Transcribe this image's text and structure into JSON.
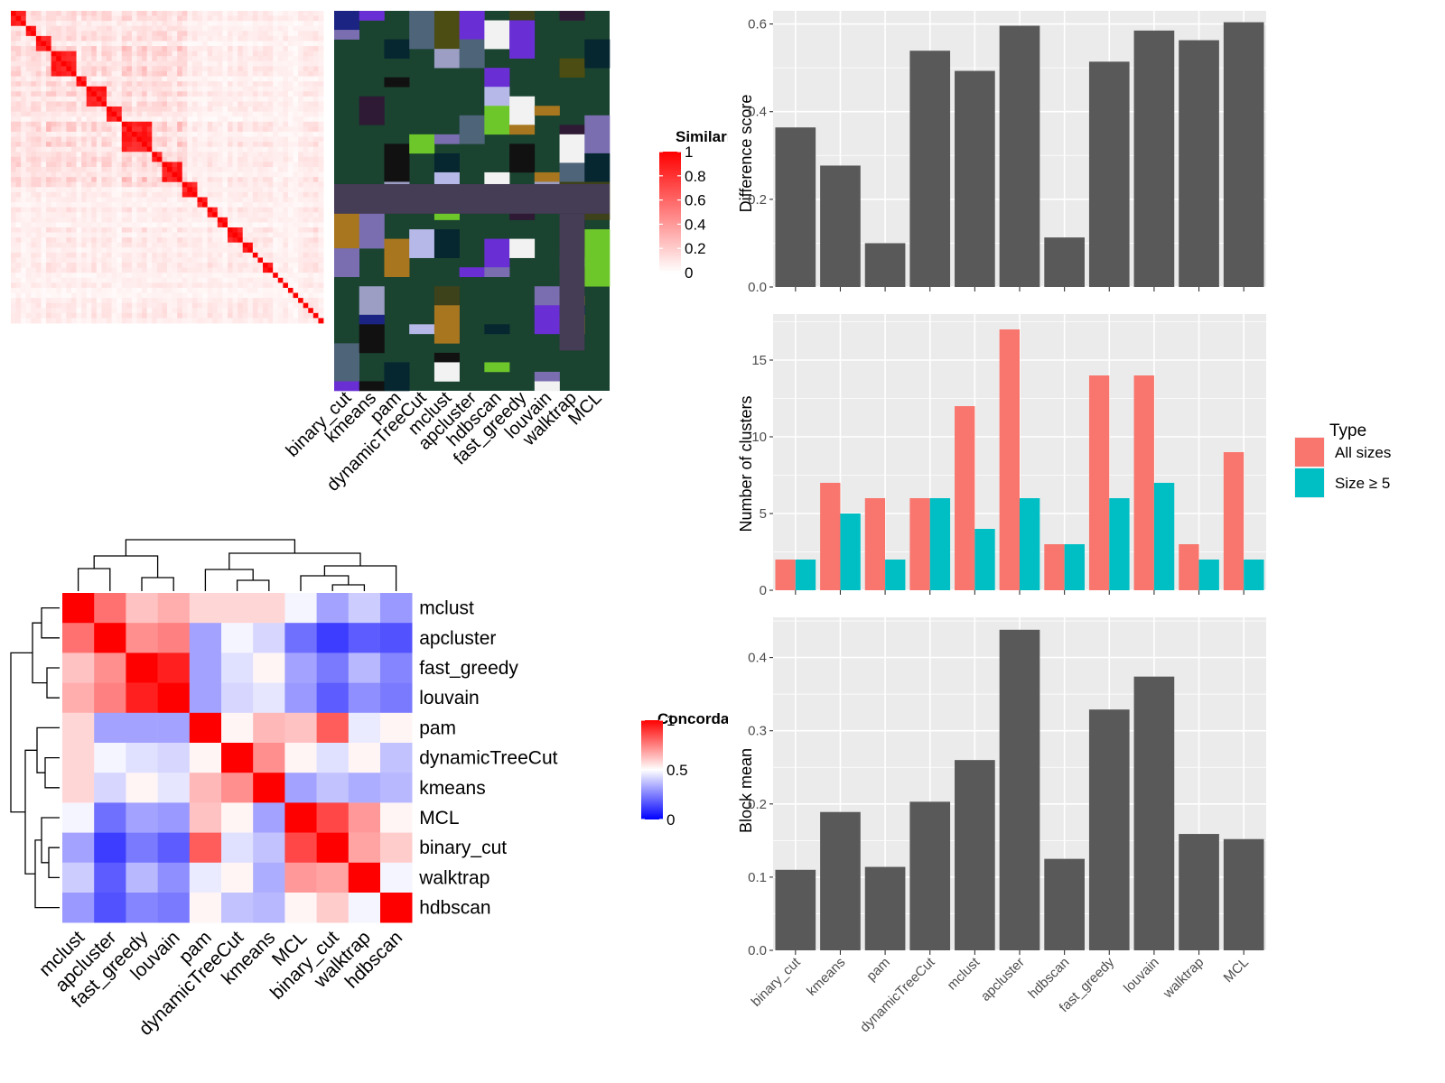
{
  "methods": [
    "binary_cut",
    "kmeans",
    "pam",
    "dynamicTreeCut",
    "mclust",
    "apcluster",
    "hdbscan",
    "fast_greedy",
    "louvain",
    "walktrap",
    "MCL"
  ],
  "top_left_panel": {
    "legend": {
      "title": "Similarity",
      "ticks": [
        0,
        0.2,
        0.4,
        0.6,
        0.8,
        1
      ]
    },
    "similarity_blocks": [
      3,
      2,
      3,
      5,
      2,
      4,
      3,
      6,
      2,
      4,
      3,
      2,
      2,
      2,
      3,
      2,
      1,
      1,
      2,
      1,
      1,
      1,
      1,
      1,
      1,
      1,
      1,
      1,
      1
    ],
    "palette": {
      "background": "#1a4330",
      "shared": "#453c55",
      "colors": [
        "#4e6479",
        "#b6b8e8",
        "#9c9ec4",
        "#1b2482",
        "#111111",
        "#2e1a35",
        "#a8761f",
        "#6ec72a",
        "#7a6eb0",
        "#6a2fd4",
        "#f2f2f2",
        "#3e421a",
        "#062630",
        "#4b4d12"
      ]
    }
  },
  "concordance_panel": {
    "legend": {
      "title": "Concordance",
      "ticks": [
        0,
        0.5,
        1
      ]
    },
    "row_order": [
      "mclust",
      "apcluster",
      "fast_greedy",
      "louvain",
      "pam",
      "dynamicTreeCut",
      "kmeans",
      "MCL",
      "binary_cut",
      "walktrap",
      "hdbscan"
    ],
    "matrix": [
      [
        1.0,
        0.78,
        0.62,
        0.66,
        0.58,
        0.58,
        0.58,
        0.48,
        0.32,
        0.4,
        0.3
      ],
      [
        0.78,
        1.0,
        0.72,
        0.75,
        0.32,
        0.48,
        0.42,
        0.22,
        0.12,
        0.18,
        0.16
      ],
      [
        0.62,
        0.72,
        1.0,
        0.94,
        0.32,
        0.44,
        0.52,
        0.32,
        0.24,
        0.36,
        0.26
      ],
      [
        0.66,
        0.75,
        0.94,
        1.0,
        0.32,
        0.42,
        0.45,
        0.3,
        0.18,
        0.28,
        0.24
      ],
      [
        0.58,
        0.32,
        0.32,
        0.32,
        1.0,
        0.52,
        0.64,
        0.62,
        0.82,
        0.46,
        0.52
      ],
      [
        0.58,
        0.48,
        0.44,
        0.42,
        0.52,
        1.0,
        0.72,
        0.52,
        0.44,
        0.52,
        0.38
      ],
      [
        0.58,
        0.42,
        0.52,
        0.45,
        0.64,
        0.72,
        1.0,
        0.32,
        0.38,
        0.34,
        0.36
      ],
      [
        0.48,
        0.22,
        0.32,
        0.3,
        0.62,
        0.52,
        0.32,
        1.0,
        0.86,
        0.7,
        0.52
      ],
      [
        0.32,
        0.12,
        0.24,
        0.18,
        0.82,
        0.44,
        0.38,
        0.86,
        1.0,
        0.68,
        0.6
      ],
      [
        0.4,
        0.18,
        0.36,
        0.28,
        0.46,
        0.52,
        0.34,
        0.7,
        0.68,
        1.0,
        0.48
      ],
      [
        0.3,
        0.16,
        0.26,
        0.24,
        0.52,
        0.38,
        0.36,
        0.52,
        0.6,
        0.48,
        1.0
      ]
    ]
  },
  "chart_data": [
    {
      "type": "bar",
      "categories": [
        "binary_cut",
        "kmeans",
        "pam",
        "dynamicTreeCut",
        "mclust",
        "apcluster",
        "hdbscan",
        "fast_greedy",
        "louvain",
        "walktrap",
        "MCL"
      ],
      "values": [
        0.364,
        0.277,
        0.1,
        0.539,
        0.493,
        0.596,
        0.113,
        0.514,
        0.585,
        0.563,
        0.604
      ],
      "ylabel": "Difference score",
      "yticks": [
        0,
        0.2,
        0.4,
        0.6
      ],
      "ytick_labels": [
        "0.0",
        "0.2",
        "0.4",
        "0.6"
      ],
      "ylim": [
        0,
        0.63
      ],
      "bar_color": "#595959",
      "grid": true
    },
    {
      "type": "bar",
      "categories": [
        "binary_cut",
        "kmeans",
        "pam",
        "dynamicTreeCut",
        "mclust",
        "apcluster",
        "hdbscan",
        "fast_greedy",
        "louvain",
        "walktrap",
        "MCL"
      ],
      "series": [
        {
          "name": "All sizes",
          "color": "#F8766D",
          "values": [
            2,
            7,
            6,
            6,
            12,
            17,
            3,
            14,
            14,
            3,
            9
          ]
        },
        {
          "name": "Size ≥ 5",
          "color": "#00BFC4",
          "values": [
            2,
            5,
            2,
            6,
            4,
            6,
            3,
            6,
            7,
            2,
            2
          ]
        }
      ],
      "ylabel": "Number of clusters",
      "yticks": [
        0,
        5,
        10,
        15
      ],
      "ytick_labels": [
        "0",
        "5",
        "10",
        "15"
      ],
      "ylim": [
        0,
        18
      ],
      "legend": {
        "title": "Type",
        "placement": "right"
      },
      "grid": true
    },
    {
      "type": "bar",
      "categories": [
        "binary_cut",
        "kmeans",
        "pam",
        "dynamicTreeCut",
        "mclust",
        "apcluster",
        "hdbscan",
        "fast_greedy",
        "louvain",
        "walktrap",
        "MCL"
      ],
      "values": [
        0.11,
        0.189,
        0.114,
        0.203,
        0.26,
        0.438,
        0.125,
        0.329,
        0.374,
        0.159,
        0.152
      ],
      "ylabel": "Block mean",
      "yticks": [
        0,
        0.1,
        0.2,
        0.3,
        0.4
      ],
      "ytick_labels": [
        "0.0",
        "0.1",
        "0.2",
        "0.3",
        "0.4"
      ],
      "ylim": [
        0,
        0.455
      ],
      "bar_color": "#595959",
      "grid": true
    }
  ]
}
